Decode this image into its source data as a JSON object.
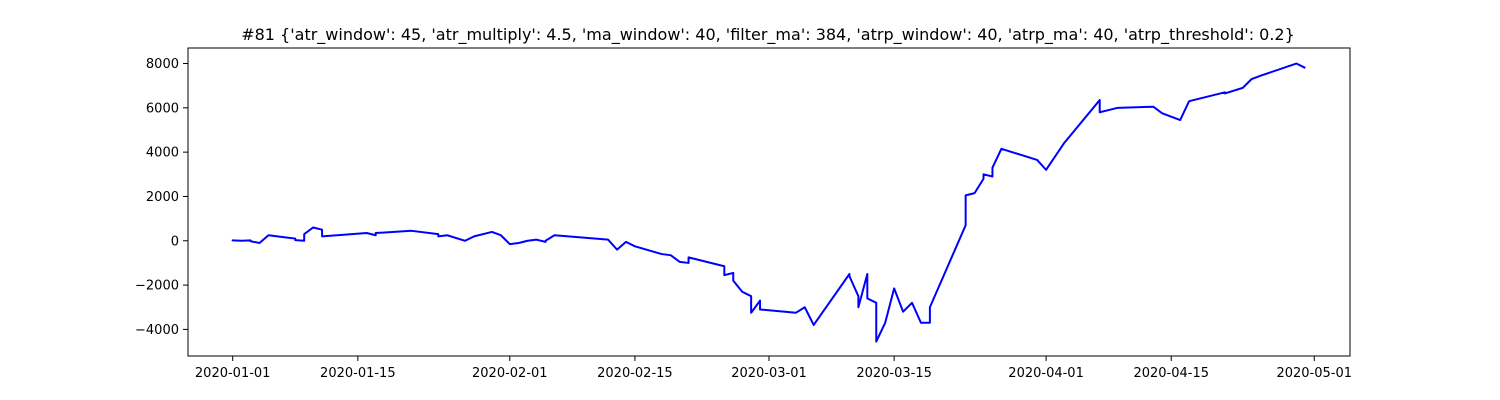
{
  "chart_data": {
    "type": "line",
    "title": "#81 {'atr_window': 45, 'atr_multiply': 4.5, 'ma_window': 40, 'filter_ma': 384, 'atrp_window': 40, 'atrp_ma': 40, 'atrp_threshold': 0.2}",
    "xlabel": "",
    "ylabel": "",
    "x_axis_type": "date",
    "xlim": [
      "2019-12-27",
      "2020-05-05"
    ],
    "ylim": [
      -5200,
      8700
    ],
    "grid": false,
    "legend": "none",
    "x_ticks": [
      "2020-01-01",
      "2020-01-15",
      "2020-02-01",
      "2020-02-15",
      "2020-03-01",
      "2020-03-15",
      "2020-04-01",
      "2020-04-15",
      "2020-05-01"
    ],
    "y_ticks": [
      -4000,
      -2000,
      0,
      2000,
      4000,
      6000,
      8000
    ],
    "series": [
      {
        "color": "#0000ff",
        "x": [
          "2020-01-01",
          "2020-01-01",
          "2020-01-02",
          "2020-01-03",
          "2020-01-03",
          "2020-01-04",
          "2020-01-05",
          "2020-01-07",
          "2020-01-08",
          "2020-01-08",
          "2020-01-09",
          "2020-01-09",
          "2020-01-10",
          "2020-01-11",
          "2020-01-11",
          "2020-01-16",
          "2020-01-17",
          "2020-01-17",
          "2020-01-21",
          "2020-01-24",
          "2020-01-24",
          "2020-01-25",
          "2020-01-27",
          "2020-01-28",
          "2020-01-30",
          "2020-01-31",
          "2020-02-01",
          "2020-02-02",
          "2020-02-03",
          "2020-02-04",
          "2020-02-05",
          "2020-02-05",
          "2020-02-06",
          "2020-02-12",
          "2020-02-13",
          "2020-02-14",
          "2020-02-15",
          "2020-02-18",
          "2020-02-19",
          "2020-02-20",
          "2020-02-21",
          "2020-02-21",
          "2020-02-25",
          "2020-02-25",
          "2020-02-25",
          "2020-02-26",
          "2020-02-26",
          "2020-02-27",
          "2020-02-28",
          "2020-02-28",
          "2020-02-29",
          "2020-02-29",
          "2020-03-04",
          "2020-03-05",
          "2020-03-06",
          "2020-03-10",
          "2020-03-10",
          "2020-03-11",
          "2020-03-11",
          "2020-03-12",
          "2020-03-12",
          "2020-03-13",
          "2020-03-13",
          "2020-03-14",
          "2020-03-15",
          "2020-03-16",
          "2020-03-17",
          "2020-03-18",
          "2020-03-19",
          "2020-03-19",
          "2020-03-23",
          "2020-03-23",
          "2020-03-24",
          "2020-03-25",
          "2020-03-25",
          "2020-03-26",
          "2020-03-26",
          "2020-03-27",
          "2020-03-31",
          "2020-04-01",
          "2020-04-03",
          "2020-04-07",
          "2020-04-07",
          "2020-04-08",
          "2020-04-09",
          "2020-04-13",
          "2020-04-14",
          "2020-04-16",
          "2020-04-17",
          "2020-04-21",
          "2020-04-21",
          "2020-04-23",
          "2020-04-24",
          "2020-04-25",
          "2020-04-29",
          "2020-04-30"
        ],
        "values": [
          -20,
          20,
          0,
          20,
          -20,
          -100,
          250,
          150,
          100,
          30,
          0,
          300,
          600,
          500,
          200,
          350,
          250,
          350,
          450,
          300,
          200,
          250,
          0,
          200,
          400,
          250,
          -150,
          -100,
          0,
          50,
          -50,
          0,
          250,
          50,
          -400,
          -50,
          -250,
          -600,
          -650,
          -950,
          -1000,
          -750,
          -1150,
          -1350,
          -1550,
          -1450,
          -1800,
          -2300,
          -2500,
          -3250,
          -2700,
          -3100,
          -3250,
          -3000,
          -3800,
          -1500,
          -1600,
          -2500,
          -3000,
          -1500,
          -2600,
          -2800,
          -4550,
          -3700,
          -2150,
          -3200,
          -2800,
          -3700,
          -3700,
          -3000,
          700,
          2050,
          2150,
          2800,
          3000,
          2900,
          3300,
          4150,
          3650,
          3200,
          4400,
          6350,
          5800,
          5900,
          6000,
          6050,
          5750,
          5450,
          6300,
          6700,
          6650,
          6900,
          7300,
          7450,
          8000,
          7800
        ]
      }
    ]
  }
}
